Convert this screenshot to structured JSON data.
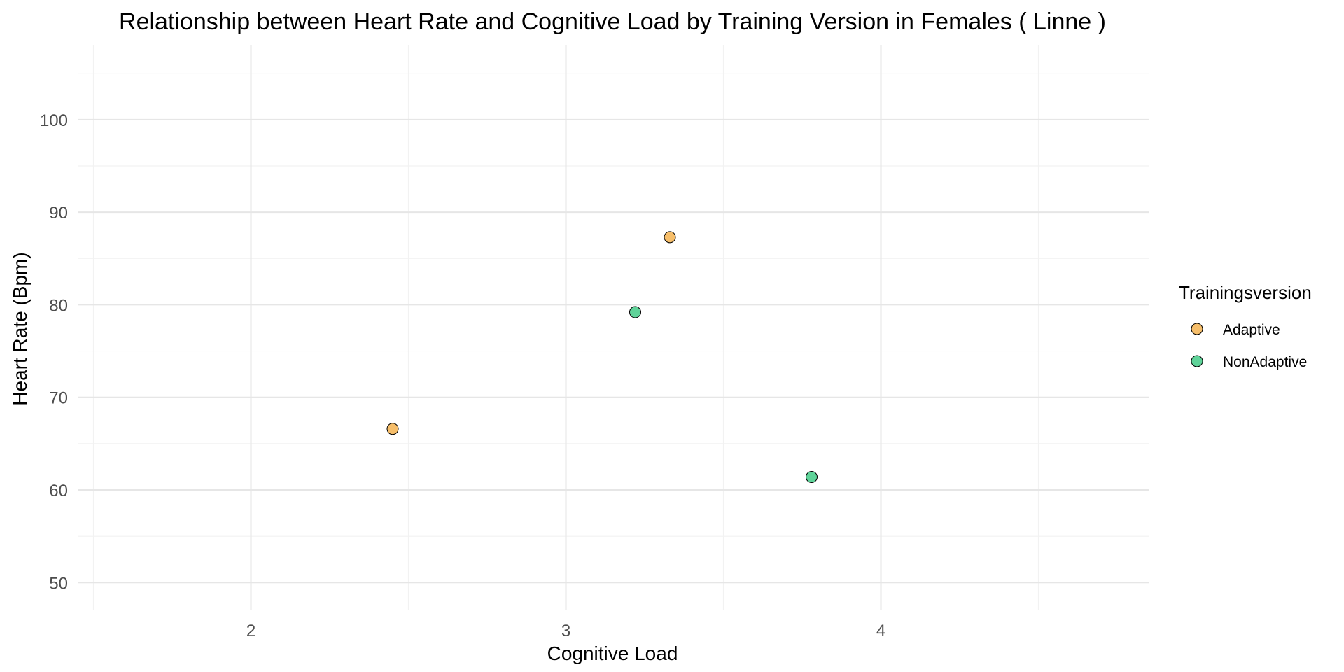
{
  "chart_data": {
    "type": "scatter",
    "title": "Relationship between Heart Rate and Cognitive Load by Training Version in Females ( Linne )",
    "xlabel": "Cognitive Load",
    "ylabel": "Heart Rate (Bpm)",
    "xlim": [
      1.45,
      4.85
    ],
    "ylim": [
      47,
      108
    ],
    "x_ticks": [
      2,
      3,
      4
    ],
    "x_minor_ticks": [
      1.5,
      2.5,
      3.5,
      4.5
    ],
    "y_ticks": [
      50,
      60,
      70,
      80,
      90,
      100
    ],
    "y_minor_ticks": [
      55,
      65,
      75,
      85,
      95,
      105
    ],
    "grid": true,
    "legend": {
      "title": "Trainingsversion",
      "position": "right"
    },
    "series": [
      {
        "name": "Adaptive",
        "color": "#F6BE6A",
        "points": [
          {
            "x": 2.45,
            "y": 66.6
          },
          {
            "x": 3.33,
            "y": 87.3
          }
        ]
      },
      {
        "name": "NonAdaptive",
        "color": "#5FD399",
        "points": [
          {
            "x": 3.22,
            "y": 79.2
          },
          {
            "x": 3.78,
            "y": 61.4
          }
        ]
      }
    ]
  }
}
